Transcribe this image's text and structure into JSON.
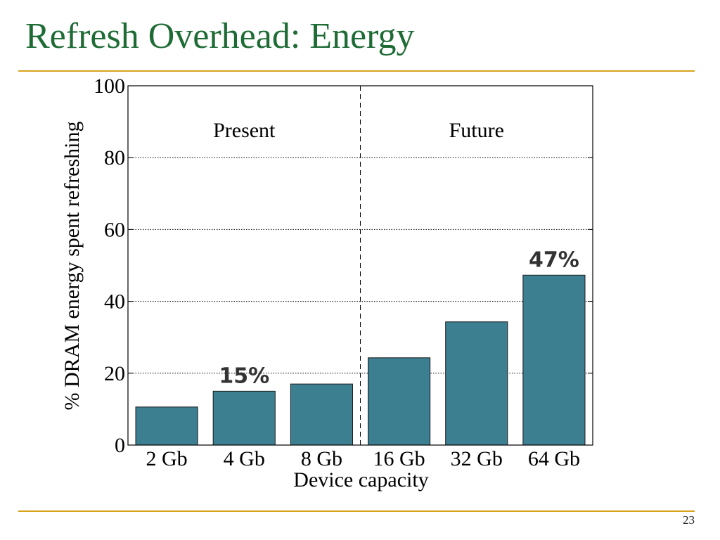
{
  "slide": {
    "title": "Refresh Overhead: Energy",
    "page_number": "23"
  },
  "colors": {
    "title": "#1e6b35",
    "rule": "#d9a21b",
    "bar": "#3c7f91",
    "annotation": "#333333"
  },
  "chart_data": {
    "type": "bar",
    "categories": [
      "2 Gb",
      "4 Gb",
      "8 Gb",
      "16 Gb",
      "32 Gb",
      "64 Gb"
    ],
    "values": [
      10.6,
      15.0,
      17.0,
      24.3,
      34.3,
      47.3
    ],
    "xlabel": "Device capacity",
    "ylabel": "% DRAM energy spent refreshing",
    "ylim": [
      0,
      100
    ],
    "yticks": [
      0,
      20,
      40,
      60,
      80,
      100
    ],
    "grid": "dotted horizontal",
    "regions": [
      {
        "label": "Present",
        "categories": [
          "2 Gb",
          "4 Gb",
          "8 Gb"
        ]
      },
      {
        "label": "Future",
        "categories": [
          "16 Gb",
          "32 Gb",
          "64 Gb"
        ]
      }
    ],
    "annotations": [
      {
        "category": "4 Gb",
        "text": "15%"
      },
      {
        "category": "64 Gb",
        "text": "47%"
      }
    ]
  }
}
